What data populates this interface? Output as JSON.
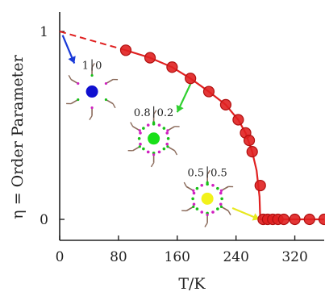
{
  "chart_data": {
    "type": "scatter",
    "title": "",
    "xlabel": "T/K",
    "ylabel": "η = Order Parameter",
    "xlim": [
      0,
      360
    ],
    "ylim": [
      0,
      1
    ],
    "x_ticks": [
      "0",
      "80",
      "160",
      "240",
      "320"
    ],
    "x_tick_values": [
      0,
      80,
      160,
      240,
      320
    ],
    "y_ticks": [
      "0",
      "1"
    ],
    "y_tick_values": [
      0,
      1
    ],
    "grid": false,
    "colors": {
      "series": "#e02020",
      "marker_edge": "#b01010",
      "dashed_extrapolation": "#e02020"
    },
    "series": [
      {
        "values": [
          {
            "x": 90,
            "y": 0.9
          },
          {
            "x": 123,
            "y": 0.86
          },
          {
            "x": 153,
            "y": 0.81
          },
          {
            "x": 178,
            "y": 0.75
          },
          {
            "x": 203,
            "y": 0.68
          },
          {
            "x": 226,
            "y": 0.61
          },
          {
            "x": 243,
            "y": 0.53
          },
          {
            "x": 253,
            "y": 0.46
          },
          {
            "x": 258,
            "y": 0.42
          },
          {
            "x": 262,
            "y": 0.36
          },
          {
            "x": 273,
            "y": 0.18
          },
          {
            "x": 277,
            "y": 0.0
          },
          {
            "x": 283,
            "y": 0.0
          },
          {
            "x": 290,
            "y": 0.0
          },
          {
            "x": 297,
            "y": 0.0
          },
          {
            "x": 305,
            "y": 0.0
          },
          {
            "x": 320,
            "y": 0.0
          },
          {
            "x": 340,
            "y": 0.0
          },
          {
            "x": 360,
            "y": 0.0
          }
        ]
      }
    ],
    "fit_line": {
      "style": "solid",
      "values": [
        {
          "x": 90,
          "y": 0.9
        },
        {
          "x": 123,
          "y": 0.86
        },
        {
          "x": 153,
          "y": 0.81
        },
        {
          "x": 178,
          "y": 0.75
        },
        {
          "x": 203,
          "y": 0.68
        },
        {
          "x": 226,
          "y": 0.61
        },
        {
          "x": 243,
          "y": 0.53
        },
        {
          "x": 253,
          "y": 0.46
        },
        {
          "x": 262,
          "y": 0.36
        },
        {
          "x": 268,
          "y": 0.26
        },
        {
          "x": 272,
          "y": 0.12
        },
        {
          "x": 273,
          "y": 0.0
        },
        {
          "x": 360,
          "y": 0.0
        }
      ]
    },
    "extrapolation": {
      "style": "dashed",
      "values": [
        {
          "x": 0,
          "y": 1.0
        },
        {
          "x": 90,
          "y": 0.9
        }
      ]
    },
    "insets": [
      {
        "labels": [
          "1",
          "0"
        ],
        "center_color": "#1010d0",
        "arrow_color": "#1a3ad8",
        "arrow_from": {
          "x": 4,
          "y": 0.98
        },
        "arrow_to": {
          "x": 20,
          "y": 0.83
        },
        "at": {
          "x": 44,
          "y": 0.68
        }
      },
      {
        "labels": [
          "0.8",
          "0.2"
        ],
        "center_color": "#18e018",
        "arrow_color": "#30d030",
        "arrow_from": {
          "x": 178,
          "y": 0.72
        },
        "arrow_to": {
          "x": 160,
          "y": 0.57
        },
        "at": {
          "x": 128,
          "y": 0.43
        }
      },
      {
        "labels": [
          "0.5",
          "0.5"
        ],
        "center_color": "#f2f21a",
        "arrow_color": "#e8e820",
        "arrow_from": {
          "x": 235,
          "y": 0.06
        },
        "arrow_to": {
          "x": 272,
          "y": 0.0
        },
        "at": {
          "x": 201,
          "y": 0.11
        }
      }
    ]
  }
}
